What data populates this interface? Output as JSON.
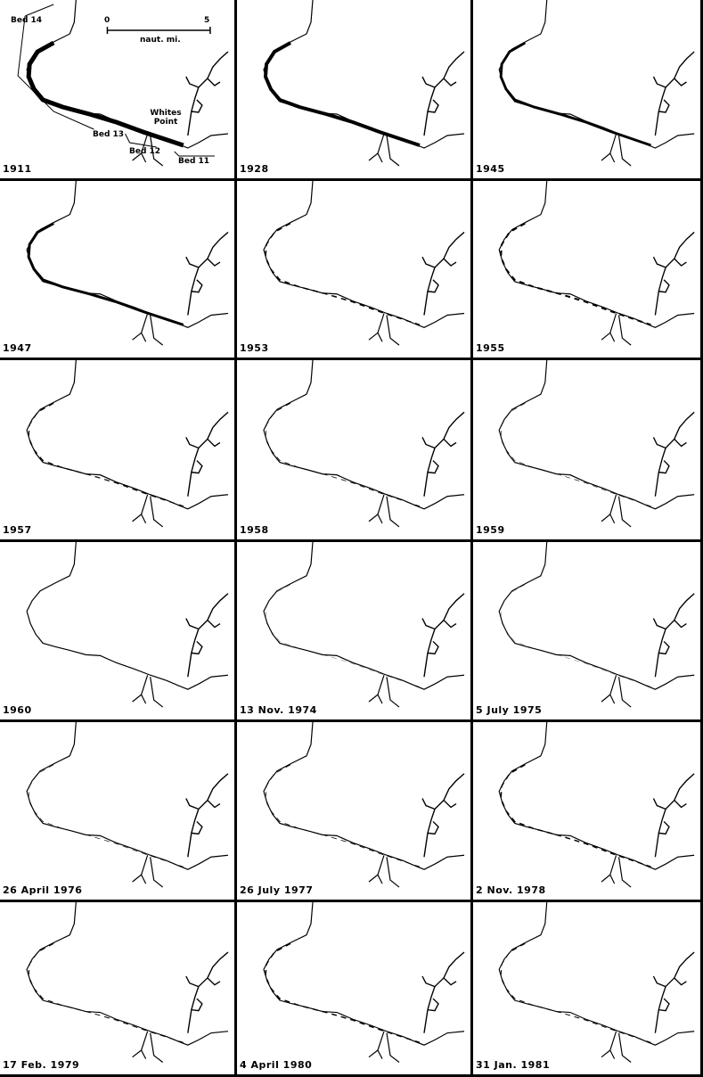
{
  "panels": [
    {
      "label": "1911"
    },
    {
      "label": "1928"
    },
    {
      "label": "1945"
    },
    {
      "label": "1947"
    },
    {
      "label": "1953"
    },
    {
      "label": "1955"
    },
    {
      "label": "1957"
    },
    {
      "label": "1958"
    },
    {
      "label": "1959"
    },
    {
      "label": "1960"
    },
    {
      "label": "13 Nov. 1974"
    },
    {
      "label": "5 July 1975"
    },
    {
      "label": "26 April 1976"
    },
    {
      "label": "26 July 1977"
    },
    {
      "label": "2 Nov. 1978"
    },
    {
      "label": "17 Feb. 1979"
    },
    {
      "label": "4 April 1980"
    },
    {
      "label": "31 Jan. 1981"
    }
  ],
  "annotations": {
    "bed14": "Bed 14",
    "bed13": "Bed 13",
    "bed12": "Bed 12",
    "bed11": "Bed 11",
    "whites_point": "Whites Point",
    "scale_start": "0",
    "scale_end": "5",
    "scale_unit": "naut. mi."
  },
  "colors": {
    "ink": "#000000",
    "paper": "#ffffff"
  }
}
